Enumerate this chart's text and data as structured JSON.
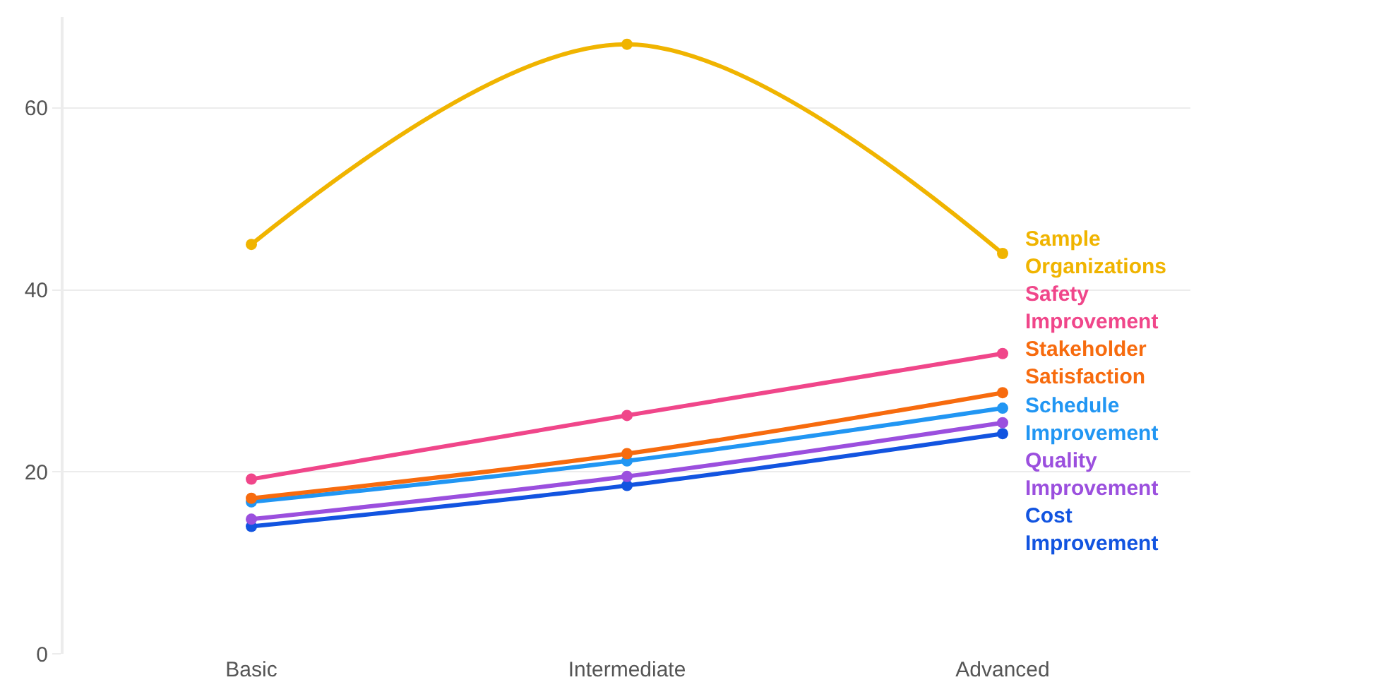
{
  "chart_data": {
    "type": "line",
    "categories": [
      "Basic",
      "Intermediate",
      "Advanced"
    ],
    "series": [
      {
        "name": "Sample Organizations",
        "color": "#f0b400",
        "values": [
          45,
          67,
          44
        ]
      },
      {
        "name": "Safety Improvement",
        "color": "#f0468a",
        "values": [
          19.2,
          26.2,
          33
        ]
      },
      {
        "name": "Stakeholder Satisfaction",
        "color": "#f76b0e",
        "values": [
          17.1,
          22,
          28.7
        ]
      },
      {
        "name": "Schedule Improvement",
        "color": "#2196f3",
        "values": [
          16.7,
          21.2,
          27
        ]
      },
      {
        "name": "Quality Improvement",
        "color": "#9b4fde",
        "values": [
          14.8,
          19.5,
          25.4
        ]
      },
      {
        "name": "Cost Improvement",
        "color": "#1254e0",
        "values": [
          14,
          18.5,
          24.2
        ]
      }
    ],
    "ylim": [
      0,
      70
    ],
    "yticks": [
      0,
      20,
      40,
      60
    ],
    "grid": "y",
    "legend": false,
    "marker": "circle",
    "line_style": "solid"
  }
}
